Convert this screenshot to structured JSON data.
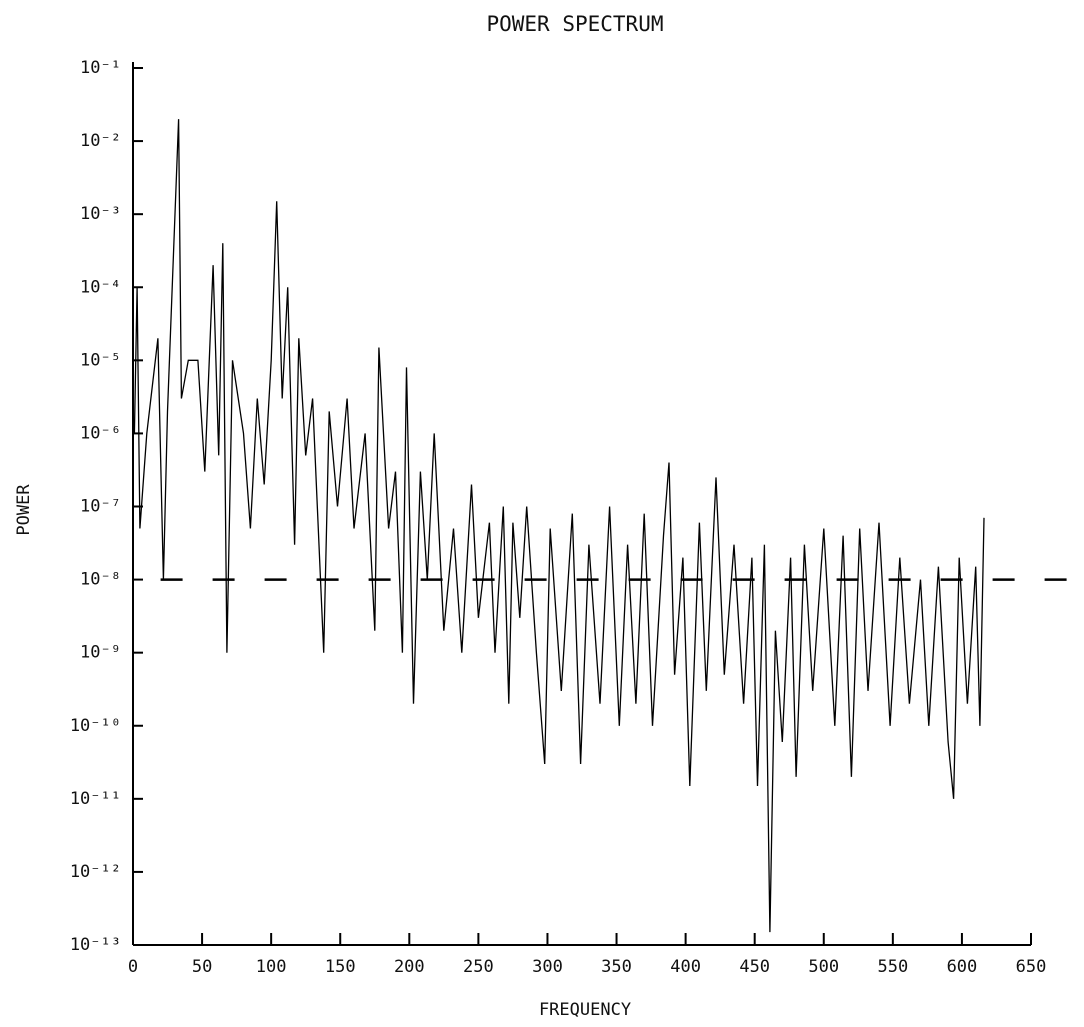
{
  "chart_data": {
    "type": "line",
    "title": "POWER SPECTRUM",
    "xlabel": "FREQUENCY",
    "ylabel": "POWER",
    "log_y": true,
    "xlim": [
      0,
      650
    ],
    "ylim": [
      1e-13,
      0.1
    ],
    "xticks": [
      0,
      50,
      100,
      150,
      200,
      250,
      300,
      350,
      400,
      450,
      500,
      550,
      600,
      650
    ],
    "yticks": [
      {
        "value": 1e-13,
        "label": "10⁻¹³"
      },
      {
        "value": 1e-12,
        "label": "10⁻¹²"
      },
      {
        "value": 1e-11,
        "label": "10⁻¹¹"
      },
      {
        "value": 1e-10,
        "label": "10⁻¹⁰"
      },
      {
        "value": 1e-09,
        "label": "10⁻⁹"
      },
      {
        "value": 1e-08,
        "label": "10⁻⁸"
      },
      {
        "value": 1e-07,
        "label": "10⁻⁷"
      },
      {
        "value": 1e-06,
        "label": "10⁻⁶"
      },
      {
        "value": 1e-05,
        "label": "10⁻⁵"
      },
      {
        "value": 0.0001,
        "label": "10⁻⁴"
      },
      {
        "value": 0.001,
        "label": "10⁻³"
      },
      {
        "value": 0.01,
        "label": "10⁻²"
      },
      {
        "value": 0.1,
        "label": "10⁻¹"
      }
    ],
    "series": [
      {
        "color": "#000000",
        "dashed": false,
        "x": [
          1,
          3,
          5,
          10,
          18,
          22,
          25,
          33,
          35,
          40,
          47,
          52,
          58,
          62,
          65,
          68,
          72,
          80,
          85,
          90,
          95,
          100,
          104,
          108,
          112,
          117,
          120,
          125,
          130,
          138,
          142,
          148,
          155,
          160,
          168,
          175,
          178,
          185,
          190,
          195,
          198,
          203,
          208,
          213,
          218,
          225,
          232,
          238,
          245,
          250,
          258,
          262,
          268,
          272,
          275,
          280,
          285,
          292,
          298,
          302,
          310,
          318,
          324,
          330,
          338,
          345,
          352,
          358,
          364,
          370,
          376,
          384,
          388,
          392,
          398,
          403,
          410,
          415,
          422,
          428,
          435,
          442,
          448,
          452,
          457,
          461,
          465,
          470,
          476,
          480,
          486,
          492,
          500,
          508,
          514,
          520,
          526,
          532,
          540,
          548,
          555,
          562,
          570,
          576,
          583,
          590,
          594,
          598,
          604,
          610,
          613,
          616
        ],
        "values": [
          1e-06,
          0.0001,
          5e-08,
          1e-06,
          2e-05,
          1e-08,
          2e-06,
          0.02,
          3e-06,
          1e-05,
          1e-05,
          3e-07,
          0.0002,
          5e-07,
          0.0004,
          1e-09,
          1e-05,
          1e-06,
          5e-08,
          3e-06,
          2e-07,
          1e-05,
          0.0015,
          3e-06,
          0.0001,
          3e-08,
          2e-05,
          5e-07,
          3e-06,
          1e-09,
          2e-06,
          1e-07,
          3e-06,
          5e-08,
          1e-06,
          2e-09,
          1.5e-05,
          5e-08,
          3e-07,
          1e-09,
          8e-06,
          2e-10,
          3e-07,
          1e-08,
          1e-06,
          2e-09,
          5e-08,
          1e-09,
          2e-07,
          3e-09,
          6e-08,
          1e-09,
          1e-07,
          2e-10,
          6e-08,
          3e-09,
          1e-07,
          1e-09,
          3e-11,
          5e-08,
          3e-10,
          8e-08,
          3e-11,
          3e-08,
          2e-10,
          1e-07,
          1e-10,
          3e-08,
          2e-10,
          8e-08,
          1e-10,
          4e-08,
          4e-07,
          5e-10,
          2e-08,
          1.5e-11,
          6e-08,
          3e-10,
          2.5e-07,
          5e-10,
          3e-08,
          2e-10,
          2e-08,
          1.5e-11,
          3e-08,
          1.5e-13,
          2e-09,
          6e-11,
          2e-08,
          2e-11,
          3e-08,
          3e-10,
          5e-08,
          1e-10,
          4e-08,
          2e-11,
          5e-08,
          3e-10,
          6e-08,
          1e-10,
          2e-08,
          2e-10,
          1e-08,
          1e-10,
          1.5e-08,
          6e-11,
          1e-11,
          2e-08,
          2e-10,
          1.5e-08,
          1e-10,
          7e-08
        ]
      },
      {
        "color": "#000000",
        "dashed": true,
        "x": [
          20,
          688
        ],
        "values": [
          1e-08,
          1e-08
        ]
      }
    ]
  }
}
